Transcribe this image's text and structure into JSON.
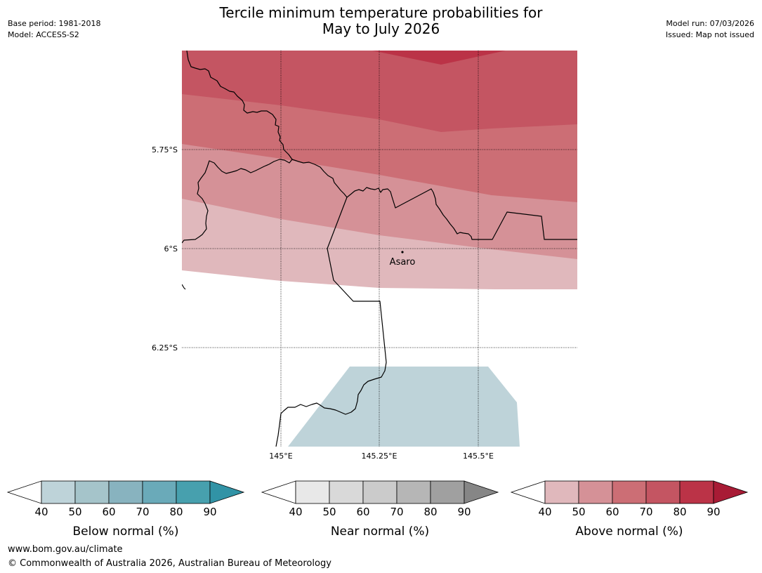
{
  "header": {
    "title_line1": "Tercile minimum temperature probabilities for",
    "title_line2": "May to July 2026",
    "base_period": "Base period: 1981-2018",
    "model": "Model: ACCESS-S2",
    "model_run": "Model run: 07/03/2026",
    "issued": "Issued: Map not issued"
  },
  "map": {
    "lat_labels": [
      "5.75°S",
      "6°S",
      "6.25°S"
    ],
    "lon_labels": [
      "145°E",
      "145.25°E",
      "145.5°E"
    ],
    "place_name": "Asaro"
  },
  "colorbars": [
    {
      "label": "Below normal (%)",
      "ticks": [
        "40",
        "50",
        "60",
        "70",
        "80",
        "90"
      ],
      "colors": [
        "#ffffff",
        "#bed3d9",
        "#a5c4ca",
        "#88b3bf",
        "#6aaab9",
        "#47a0ae",
        "#3193a6"
      ]
    },
    {
      "label": "Near normal (%)",
      "ticks": [
        "40",
        "50",
        "60",
        "70",
        "80",
        "90"
      ],
      "colors": [
        "#ffffff",
        "#e8e8e8",
        "#d9d9d9",
        "#cbcbcb",
        "#b6b6b6",
        "#a0a0a0",
        "#868686"
      ]
    },
    {
      "label": "Above normal (%)",
      "ticks": [
        "40",
        "50",
        "60",
        "70",
        "80",
        "90"
      ],
      "colors": [
        "#ffffff",
        "#e0b8bc",
        "#d59197",
        "#cc6e75",
        "#c45562",
        "#bb3347",
        "#a81b35"
      ]
    }
  ],
  "footer": {
    "url": "www.bom.gov.au/climate",
    "copyright": "© Commonwealth of Australia 2026, Australian Bureau of Meteorology"
  }
}
